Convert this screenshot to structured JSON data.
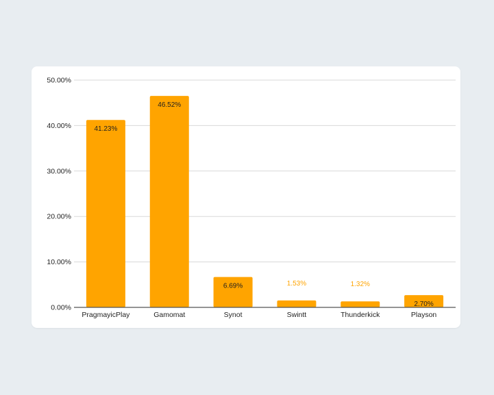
{
  "chart_data": {
    "type": "bar",
    "title": "",
    "xlabel": "",
    "ylabel": "",
    "categories": [
      "PragmayicPlay",
      "Gamomat",
      "Synot",
      "Swintt",
      "Thunderkick",
      "Playson"
    ],
    "values": [
      41.23,
      46.52,
      6.69,
      1.53,
      1.32,
      2.7
    ],
    "value_labels": [
      "41.23%",
      "46.52%",
      "6.69%",
      "1.53%",
      "1.32%",
      "2.70%"
    ],
    "ylim": [
      0,
      50
    ],
    "y_ticks": [
      0,
      10,
      20,
      30,
      40,
      50
    ],
    "y_tick_labels": [
      "0.00%",
      "10.00%",
      "20.00%",
      "30.00%",
      "40.00%",
      "50.00%"
    ],
    "grid": true,
    "legend": "none",
    "colors": {
      "bar": "#FFA400",
      "gridline": "#d8d8d8",
      "axis": "#555555",
      "label_inside": "#1f1f1f",
      "label_outside": "#FFA400",
      "background": "#e8edf1",
      "card": "#ffffff"
    }
  }
}
